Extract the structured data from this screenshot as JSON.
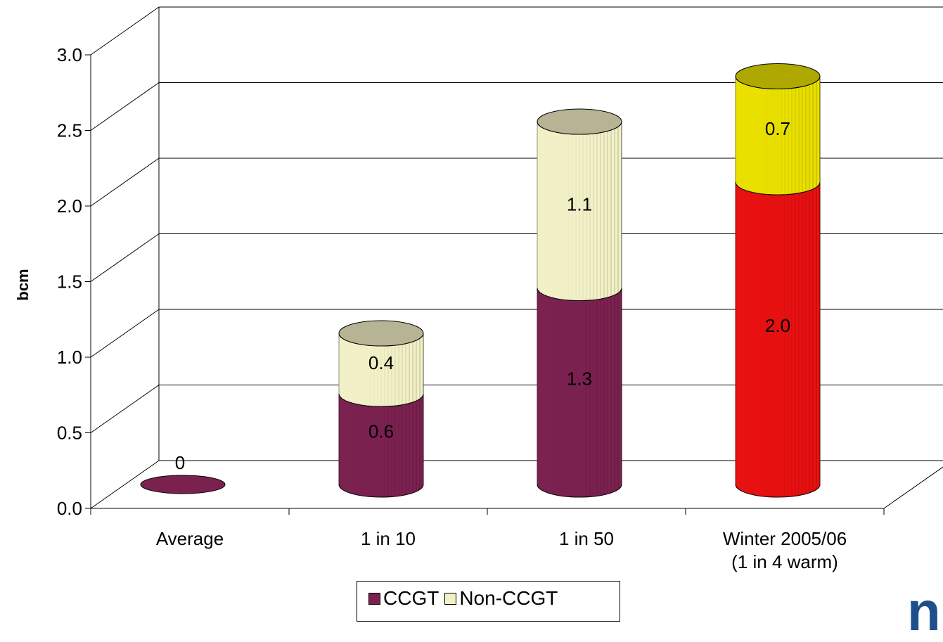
{
  "chart_data": {
    "type": "bar",
    "stacked": true,
    "style": "3d-cylinder",
    "categories": [
      "Average",
      "1 in 10",
      "1 in 50",
      "Winter 2005/06\n(1 in 4 warm)"
    ],
    "series": [
      {
        "name": "CCGT",
        "values": [
          0,
          0.6,
          1.3,
          2.0
        ],
        "labels": [
          "0",
          "0.6",
          "1.3",
          "2.0"
        ]
      },
      {
        "name": "Non-CCGT",
        "values": [
          0,
          0.4,
          1.1,
          0.7
        ],
        "labels": [
          "",
          "0.4",
          "1.1",
          "0.7"
        ]
      }
    ],
    "ylabel": "bcm",
    "xlabel": "",
    "ylim": [
      0,
      3.0
    ],
    "yticks": [
      "0.0",
      "0.5",
      "1.0",
      "1.5",
      "2.0",
      "2.5",
      "3.0"
    ],
    "grid": true,
    "legend_position": "bottom",
    "colors": {
      "ccgt": "#7b2150",
      "non_ccgt": "#f2f0c6",
      "winter_ccgt": "#e81010",
      "winter_non_ccgt": "#e9e000"
    }
  },
  "legend": {
    "ccgt": "CCGT",
    "non_ccgt": "Non-CCGT"
  },
  "logo_text": "na"
}
